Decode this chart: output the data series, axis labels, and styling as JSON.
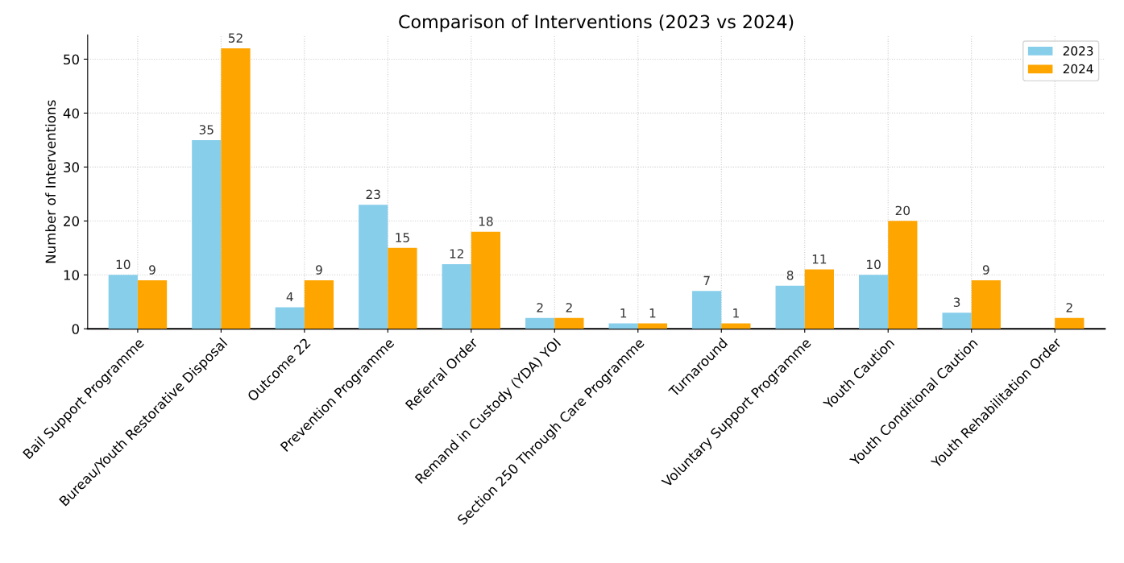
{
  "chart_data": {
    "type": "bar",
    "title": "Comparison of Interventions (2023 vs 2024)",
    "ylabel": "Number of Interventions",
    "categories": [
      "Bail Support Programme",
      "Bureau/Youth Restorative Disposal",
      "Outcome 22",
      "Prevention Programme",
      "Referral Order",
      "Remand in Custody (YDA) YOI",
      "Section 250 Through Care Programme",
      "Turnaround",
      "Voluntary Support Programme",
      "Youth Caution",
      "Youth Conditional Caution",
      "Youth Rehabilitation Order"
    ],
    "series": [
      {
        "name": "2023",
        "color": "#87ceeb",
        "values": [
          10,
          35,
          4,
          23,
          12,
          2,
          1,
          7,
          8,
          10,
          3,
          null
        ]
      },
      {
        "name": "2024",
        "color": "#ffa500",
        "values": [
          9,
          52,
          9,
          15,
          18,
          2,
          1,
          1,
          11,
          20,
          9,
          2
        ]
      }
    ],
    "ylim": [
      0,
      54.5
    ],
    "yticks": [
      0,
      10,
      20,
      30,
      40,
      50
    ],
    "grid": true,
    "legend": "top right",
    "data_labels": true
  }
}
